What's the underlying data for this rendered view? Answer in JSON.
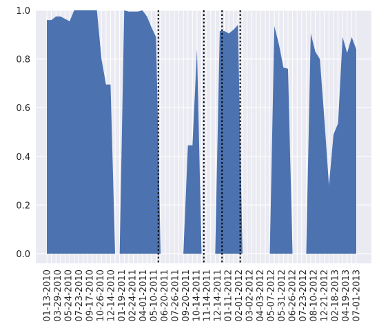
{
  "chart_data": {
    "type": "area",
    "title": "",
    "xlabel": "",
    "ylabel": "",
    "ylim": [
      -0.05,
      1.0
    ],
    "grid": true,
    "colors": {
      "area": "#4c72b0",
      "plot_bg": "#eaeaf2",
      "grid": "#ffffff",
      "vline": "#000000"
    },
    "x_ticklabels": [
      "01-13-2010",
      "03-29-2010",
      "05-24-2010",
      "07-23-2010",
      "09-17-2010",
      "10-26-2010",
      "12-14-2010",
      "01-19-2011",
      "02-24-2011",
      "04-01-2011",
      "05-10-2011",
      "06-20-2011",
      "07-26-2011",
      "09-20-2011",
      "10-14-2011",
      "11-14-2011",
      "12-14-2011",
      "01-11-2012",
      "02-01-2012",
      "03-02-2012",
      "04-03-2012",
      "05-07-2012",
      "05-31-2012",
      "06-26-2012",
      "07-23-2012",
      "08-10-2012",
      "12-21-2012",
      "02-18-2013",
      "04-19-2013",
      "07-01-2013"
    ],
    "y_ticklabels": [
      "0.0",
      "0.2",
      "0.4",
      "0.6",
      "0.8",
      "1.0"
    ],
    "y_ticks": [
      0,
      0.2,
      0.4,
      0.6,
      0.8,
      1.0
    ],
    "series": [
      {
        "values": [
          0.96,
          0.96,
          0.975,
          0.975,
          0.965,
          0.955,
          1.0,
          1.0,
          1.0,
          1.0,
          1.0,
          1.0,
          0.8,
          0.695,
          0.695,
          0.0,
          0.0,
          1.0,
          0.995,
          0.995,
          0.995,
          1.0,
          0.975,
          0.93,
          0.89,
          0.0,
          0.0,
          0.0,
          0.0,
          0.0,
          0.0,
          0.445,
          0.445,
          0.84,
          0.0,
          0.0,
          0.0,
          0.0,
          0.915,
          0.915,
          0.905,
          0.92,
          0.94,
          0.0,
          0.0,
          0.0,
          0.0,
          0.0,
          0.0,
          0.0,
          0.935,
          0.86,
          0.765,
          0.76,
          0.0,
          0.0,
          0.0,
          0.0,
          0.905,
          0.83,
          0.8,
          0.55,
          0.28,
          0.49,
          0.535,
          0.89,
          0.825,
          0.89,
          0.84
        ]
      }
    ],
    "vlines_at_index": [
      24.5,
      34.5,
      38.5,
      42.5
    ]
  }
}
